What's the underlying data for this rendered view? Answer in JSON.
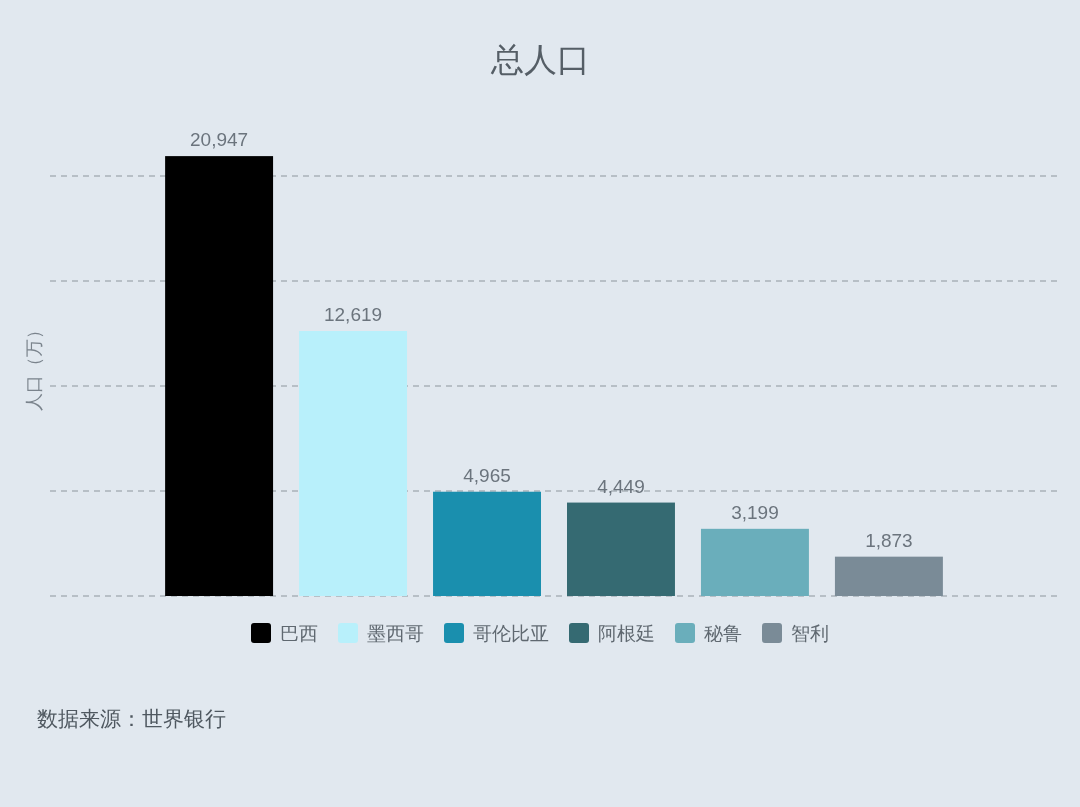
{
  "chart_data": {
    "type": "bar",
    "title": "总人口",
    "ylabel": "人口（万）",
    "categories": [
      null
    ],
    "series": [
      {
        "name": "巴西",
        "color": "#000000",
        "values": [
          20947
        ],
        "value_labels": [
          "20,947"
        ]
      },
      {
        "name": "墨西哥",
        "color": "#b8f0fb",
        "values": [
          12619
        ],
        "value_labels": [
          "12,619"
        ]
      },
      {
        "name": "哥伦比亚",
        "color": "#1a8fae",
        "values": [
          4965
        ],
        "value_labels": [
          "4,965"
        ]
      },
      {
        "name": "阿根廷",
        "color": "#356a72",
        "values": [
          4449
        ],
        "value_labels": [
          "4,449"
        ]
      },
      {
        "name": "秘鲁",
        "color": "#6aaebb",
        "values": [
          3199
        ],
        "value_labels": [
          "3,199"
        ]
      },
      {
        "name": "智利",
        "color": "#7a8b97",
        "values": [
          1873
        ],
        "value_labels": [
          "1,873"
        ]
      }
    ],
    "ylim": [
      0,
      21000
    ],
    "yticks": [
      {
        "value": 0,
        "label": null
      },
      {
        "value": 5000,
        "label": null
      },
      {
        "value": 10000,
        "label": null
      },
      {
        "value": 15000,
        "label": null
      },
      {
        "value": 20000,
        "label": null
      }
    ],
    "grid": "y",
    "legend": "bottom",
    "annotations": [
      "数据来源：世界银行"
    ]
  }
}
